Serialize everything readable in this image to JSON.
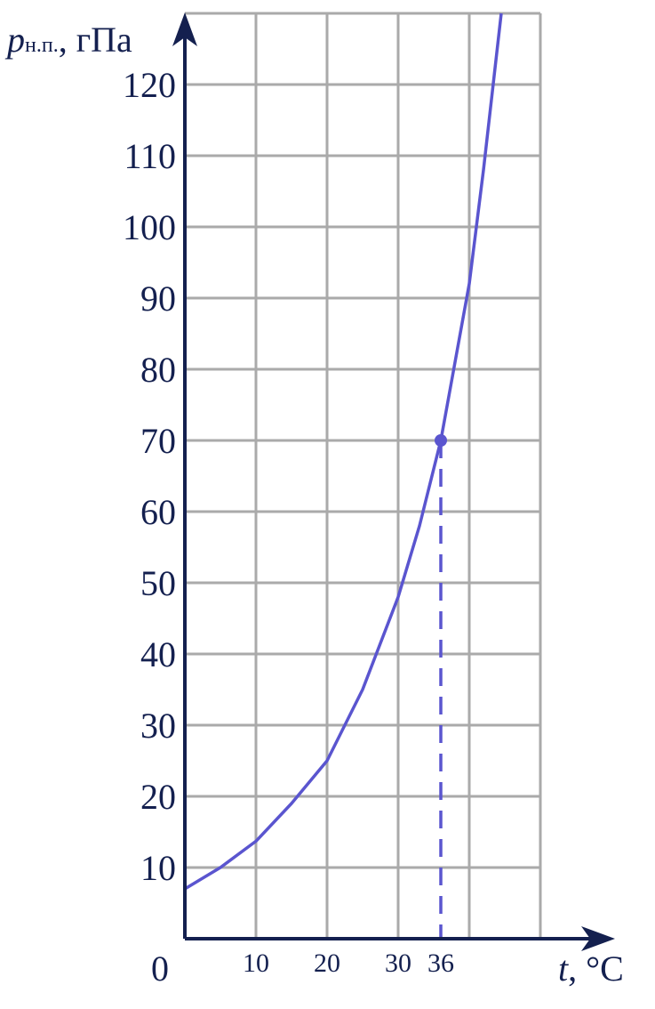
{
  "chart_data": {
    "type": "line",
    "y_label": {
      "symbol": "p",
      "subscript": "н.п.",
      "unit": ", гПа"
    },
    "x_label": {
      "symbol": "t",
      "unit": ", °C"
    },
    "origin_label": "0",
    "x": [
      0,
      5,
      10,
      15,
      20,
      25,
      30,
      33,
      36,
      40,
      42,
      44.5
    ],
    "series": [
      {
        "color": "#5a55cf",
        "values": [
          7,
          10,
          13.7,
          19,
          25,
          35,
          48,
          58,
          70,
          92,
          108,
          130
        ]
      }
    ],
    "xlim": [
      0,
      50
    ],
    "ylim": [
      0,
      130
    ],
    "xticks": [
      10,
      20,
      30,
      36
    ],
    "xgrid": [
      10,
      20,
      30,
      40,
      50
    ],
    "yticks": [
      10,
      20,
      30,
      40,
      50,
      60,
      70,
      80,
      90,
      100,
      110,
      120
    ],
    "ygrid": [
      10,
      20,
      30,
      40,
      50,
      60,
      70,
      80,
      90,
      100,
      110,
      120,
      130
    ],
    "marked_point": {
      "x": 36,
      "y": 70
    },
    "grid": true
  }
}
